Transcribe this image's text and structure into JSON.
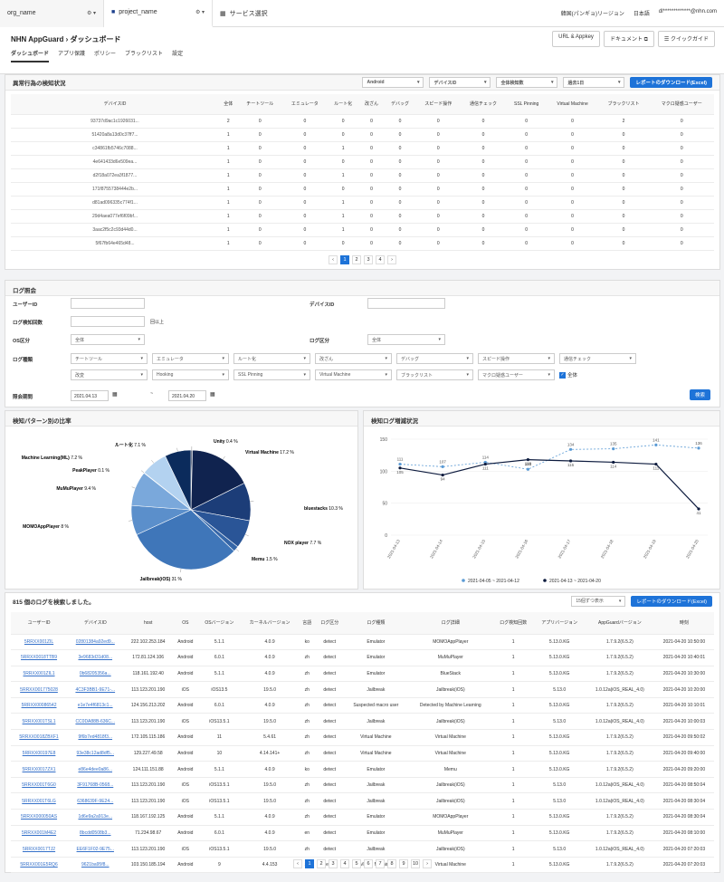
{
  "topbar": {
    "org": "org_name",
    "project": "project_name",
    "services": "サービス選択",
    "region": "韓国(パンギョ)リージョン",
    "lang": "日本語",
    "user": "dl*************@nhn.com"
  },
  "header": {
    "product": "NHN AppGuard",
    "page": "ダッシュボード",
    "btn_key": "URL & Appkey",
    "btn_doc": "ドキュメント",
    "btn_guide": "クイックガイド",
    "tabs": [
      "ダッシュボード",
      "アプリ保護",
      "ポリシー",
      "ブラックリスト",
      "設定"
    ]
  },
  "abnormal": {
    "title": "異常行為の検知状況",
    "filters": [
      "Android",
      "デバイスID",
      "全体検知数",
      "過去1日"
    ],
    "download": "レポートのダウンロード(Excel)",
    "columns": [
      "デバイスID",
      "全体",
      "チートツール",
      "エミュレータ",
      "ルート化",
      "改ざん",
      "デバッグ",
      "スピード操作",
      "通信チェック",
      "SSL Pinning",
      "Virtual Machine",
      "ブラックリスト",
      "マクロ疑惑ユーザー"
    ],
    "rows": [
      [
        "93737d9ac1c1926031...",
        "2",
        "0",
        "0",
        "0",
        "0",
        "0",
        "0",
        "0",
        "0",
        "0",
        "2",
        "0"
      ],
      [
        "51420a8a13d0c37ff7...",
        "1",
        "0",
        "0",
        "0",
        "0",
        "0",
        "0",
        "0",
        "0",
        "0",
        "0",
        "0"
      ],
      [
        "c34861fb5746c7088...",
        "1",
        "0",
        "0",
        "1",
        "0",
        "0",
        "0",
        "0",
        "0",
        "0",
        "0",
        "0"
      ],
      [
        "4e641433d6e509ea...",
        "1",
        "0",
        "0",
        "0",
        "0",
        "0",
        "0",
        "0",
        "0",
        "0",
        "0",
        "0"
      ],
      [
        "d2f18a072ea3f1877...",
        "1",
        "0",
        "0",
        "1",
        "0",
        "0",
        "0",
        "0",
        "0",
        "0",
        "0",
        "0"
      ],
      [
        "171f8755738444e2b...",
        "1",
        "0",
        "0",
        "0",
        "0",
        "0",
        "0",
        "0",
        "0",
        "0",
        "0",
        "0"
      ],
      [
        "d81ad096335c774f1...",
        "1",
        "0",
        "0",
        "1",
        "0",
        "0",
        "0",
        "0",
        "0",
        "0",
        "0",
        "0"
      ],
      [
        "29d4aea077ef6f09bf...",
        "1",
        "0",
        "0",
        "1",
        "0",
        "0",
        "0",
        "0",
        "0",
        "0",
        "0",
        "0"
      ],
      [
        "3aac2f5c2c93d44d0...",
        "1",
        "0",
        "0",
        "1",
        "0",
        "0",
        "0",
        "0",
        "0",
        "0",
        "0",
        "0"
      ],
      [
        "5f67fb64e465d48...",
        "1",
        "0",
        "0",
        "0",
        "0",
        "0",
        "0",
        "0",
        "0",
        "0",
        "0",
        "0"
      ]
    ],
    "pages": [
      "1",
      "2",
      "3",
      "4"
    ]
  },
  "log": {
    "title": "ログ照会",
    "user_id": "ユーザーID",
    "device_id": "デバイスID",
    "detect_count": "ログ検知回数",
    "detect_suffix": "回以上",
    "os": "OS区分",
    "os_val": "全体",
    "logtype": "ログ区分",
    "logtype_val": "全体",
    "kind": "ログ種類",
    "kinds1": [
      "チートツール",
      "エミュレータ",
      "ルート化",
      "改ざん",
      "デバッグ",
      "スピード操作",
      "通信チェック"
    ],
    "kinds2": [
      "改変",
      "Hooking",
      "SSL Pinning",
      "Virtual Machine",
      "ブラックリスト",
      "マクロ疑惑ユーザー"
    ],
    "all": "全体",
    "period": "照会期間",
    "date_from": "2021.04.13",
    "date_to": "2021.04.20",
    "search": "検索"
  },
  "pie": {
    "title": "検知パターン別の比率"
  },
  "line": {
    "title": "検知ログ増減状況"
  },
  "chart_data": [
    {
      "type": "pie",
      "slices": [
        {
          "label": "Unity",
          "value": 0.4,
          "color": "#0d1b3e"
        },
        {
          "label": "Virtual Machine",
          "value": 17.2,
          "color": "#10234f"
        },
        {
          "label": "bluestacks",
          "value": 10.3,
          "color": "#1c3d78"
        },
        {
          "label": "NOX player",
          "value": 7.7,
          "color": "#2a5597"
        },
        {
          "label": "Memu",
          "value": 1.5,
          "color": "#3566a8"
        },
        {
          "label": "Jailbreak(iOS)",
          "value": 31.0,
          "color": "#3f76b9"
        },
        {
          "label": "MOMOAppPlayer",
          "value": 8.0,
          "color": "#5b8fcb"
        },
        {
          "label": "MuMuPlayer",
          "value": 9.4,
          "color": "#7aa8db"
        },
        {
          "label": "PeakPlayer",
          "value": 0.1,
          "color": "#95bde6"
        },
        {
          "label": "Machine Learning(ML)",
          "value": 7.2,
          "color": "#b3d2f0"
        },
        {
          "label": "ルート化",
          "value": 7.1,
          "color": "#0b2b5c"
        }
      ]
    },
    {
      "type": "line",
      "x": [
        "2021-04-13",
        "2021-04-14",
        "2021-04-15",
        "2021-04-16",
        "2021-04-17",
        "2021-04-18",
        "2021-04-19",
        "2021-04-20"
      ],
      "ylim": [
        0,
        150
      ],
      "yticks": [
        "0",
        "50",
        "100",
        "150"
      ],
      "series": [
        {
          "name": "2021-04-05 ~ 2021-04-12",
          "values": [
            111,
            107,
            114,
            103,
            134,
            135,
            141,
            136
          ],
          "color": "#5b9bd5"
        },
        {
          "name": "2021-04-13 ~ 2021-04-20",
          "values": [
            105,
            94,
            111,
            118,
            116,
            114,
            111,
            41
          ],
          "color": "#0d1b3e"
        }
      ]
    }
  ],
  "results": {
    "count_text": "815 個のログを検索しました。",
    "per_page": "15個ずつ表示",
    "download": "レポートのダウンロード(Excel)",
    "columns": [
      "ユーザーID",
      "デバイスID",
      "host",
      "OS",
      "OSバージョン",
      "カーネルバージョン",
      "言語",
      "ログ区分",
      "ログ種類",
      "ログ詳細",
      "ログ検知回数",
      "アプリバージョン",
      "AppGuardバージョン",
      "時刻"
    ],
    "rows": [
      [
        "5RRXX001ZIL",
        "02801384a92ed9...",
        "222.102.253.184",
        "Android",
        "5.1.1",
        "4.0.9",
        "ko",
        "detect",
        "Emulator",
        "MOMOAppPlayer",
        "1",
        "5.13.0.KG",
        "1.7.9.2(6.5.2)",
        "2021-04-20 10:50:00"
      ],
      [
        "5RRXX0018TTB9",
        "3e9683d31d08...",
        "172.81.124.106",
        "Android",
        "6.0.1",
        "4.0.9",
        "zh",
        "detect",
        "Emulator",
        "MuMuPlayer",
        "1",
        "5.13.0.KG",
        "1.7.9.2(6.5.2)",
        "2021-04-20 10:40:01"
      ],
      [
        "5RRXX001ZIL1",
        "0b68205356a...",
        "118.161.192.40",
        "Android",
        "5.1.1",
        "4.0.9",
        "zh",
        "detect",
        "Emulator",
        "BlueStack",
        "1",
        "5.13.0.KG",
        "1.7.9.2(6.5.2)",
        "2021-04-20 10:30:00"
      ],
      [
        "5RRXX001775028",
        "4C3F3BB1-9E71-...",
        "113.123.201.190",
        "iOS",
        "iOS13.5",
        "19.5.0",
        "zh",
        "detect",
        "Jailbreak",
        "Jailbreak(iOS)",
        "1",
        "5.13.0",
        "1.0.12a(iOS_REAL_4.0)",
        "2021-04-20 10:20:00"
      ],
      [
        "5RRXX00086542",
        "e1e7e4f6813c1...",
        "124.156.213.202",
        "Android",
        "6.0.1",
        "4.0.9",
        "zh",
        "detect",
        "Suspected macro user",
        "Detected by Machine Learning",
        "1",
        "5.13.0.KG",
        "1.7.9.2(6.5.2)",
        "2021-04-20 10:10:01"
      ],
      [
        "5RRXX001TSL1",
        "CC0DA88B-636C...",
        "113.123.201.190",
        "iOS",
        "iOS13.5.1",
        "19.5.0",
        "zh",
        "detect",
        "Jailbreak",
        "Jailbreak(iOS)",
        "1",
        "5.13.0",
        "1.0.12a(iOS_REAL_4.0)",
        "2021-04-20 10:00:03"
      ],
      [
        "5RRXX0018ZBXF1",
        "9f6b7ed4818f3...",
        "172.105.115.186",
        "Android",
        "11",
        "5.4.61",
        "zh",
        "detect",
        "Virtual Machine",
        "Virtual Machine",
        "1",
        "5.13.0.KG",
        "1.7.9.2(6.5.2)",
        "2021-04-20 09:50:02"
      ],
      [
        "5RRXX00197E8",
        "93e38c12ad8df5...",
        "129.227.49.58",
        "Android",
        "10",
        "4.14.141+",
        "zh",
        "detect",
        "Virtual Machine",
        "Virtual Machine",
        "1",
        "5.13.0.KG",
        "1.7.9.2(6.5.2)",
        "2021-04-20 09:40:00"
      ],
      [
        "5RRXX0017ZX1",
        "e86e4dee0a86...",
        "124.111.151.88",
        "Android",
        "5.1.1",
        "4.0.9",
        "ko",
        "detect",
        "Emulator",
        "Memu",
        "1",
        "5.13.0.KG",
        "1.7.9.2(6.5.2)",
        "2021-04-20 09:20:00"
      ],
      [
        "5RRXX001T6G0",
        "3F91768B-0568...",
        "113.123.201.190",
        "iOS",
        "iOS13.5.1",
        "19.5.0",
        "zh",
        "detect",
        "Jailbreak",
        "Jailbreak(iOS)",
        "1",
        "5.13.0",
        "1.0.12a(iOS_REAL_4.0)",
        "2021-04-20 08:50:04"
      ],
      [
        "5RRXX001T6LG",
        "6368639F-9E24...",
        "113.123.201.190",
        "iOS",
        "iOS13.5.1",
        "19.5.0",
        "zh",
        "detect",
        "Jailbreak",
        "Jailbreak(iOS)",
        "1",
        "5.13.0",
        "1.0.12a(iOS_REAL_4.0)",
        "2021-04-20 08:30:04"
      ],
      [
        "5RRXX000050AS",
        "1d6e9a2a913e...",
        "118.167.192.125",
        "Android",
        "5.1.1",
        "4.0.9",
        "zh",
        "detect",
        "Emulator",
        "MOMOAppPlayer",
        "1",
        "5.13.0.KG",
        "1.7.9.2(6.5.2)",
        "2021-04-20 08:30:04"
      ],
      [
        "5RRXX001M4E2",
        "8bcdd0508b3...",
        "71.234.98.67",
        "Android",
        "6.0.1",
        "4.0.9",
        "en",
        "detect",
        "Emulator",
        "MuMuPlayer",
        "1",
        "5.13.0.KG",
        "1.7.9.2(6.5.2)",
        "2021-04-20 08:10:00"
      ],
      [
        "5RRXX0017TJ2",
        "EE6F1F02-9E75...",
        "113.123.201.190",
        "iOS",
        "iOS13.5.1",
        "19.5.0",
        "zh",
        "detect",
        "Jailbreak",
        "Jailbreak(iOS)",
        "1",
        "5.13.0",
        "1.0.12a(iOS_REAL_4.0)",
        "2021-04-20 07:20:03"
      ],
      [
        "5RRXX001E5RQ6",
        "9621ba95f8...",
        "103.150.185.194",
        "Android",
        "9",
        "4.4.153",
        "zh",
        "detect",
        "Virtual Machine",
        "Virtual Machine",
        "1",
        "5.13.0.KG",
        "1.7.9.2(6.5.2)",
        "2021-04-20 07:20:03"
      ]
    ],
    "pages": [
      "1",
      "2",
      "3",
      "4",
      "5",
      "6",
      "7",
      "8",
      "9",
      "10"
    ]
  }
}
